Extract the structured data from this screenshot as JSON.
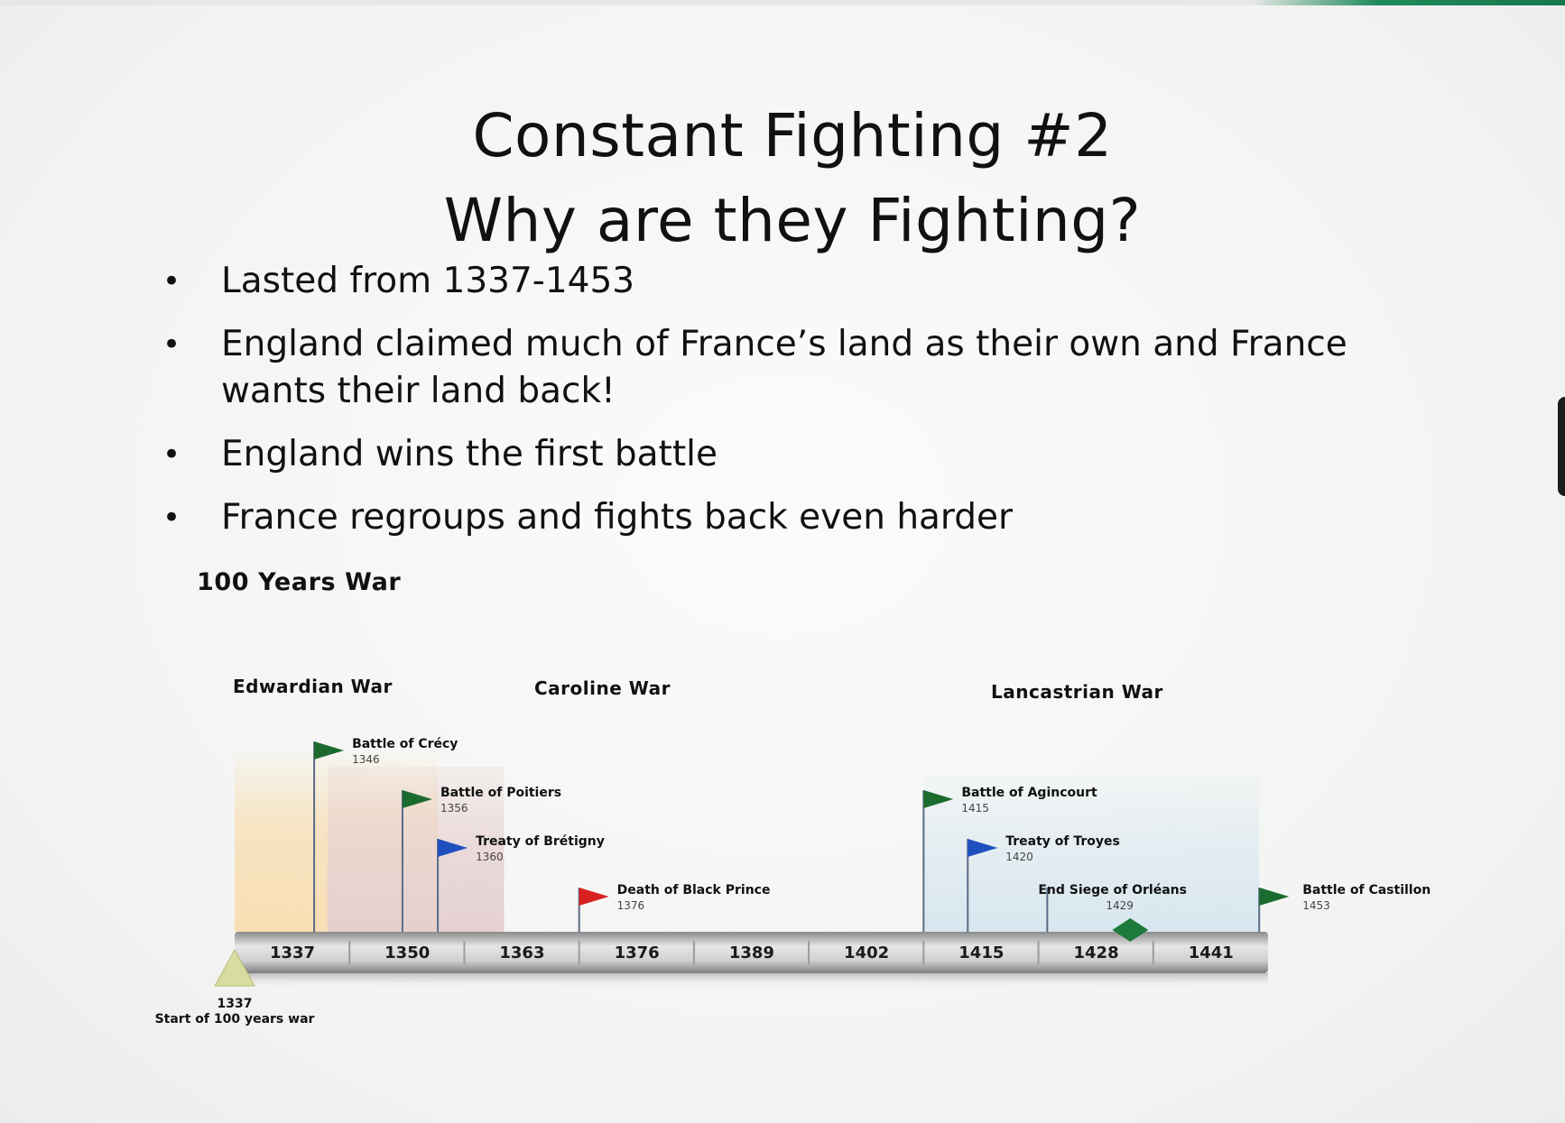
{
  "slide": {
    "title_line1": "Constant Fighting #2",
    "title_line2": "Why are they Fighting?",
    "bullets": [
      "Lasted from 1337-1453",
      "England claimed much of France’s land as their own and France wants their land back!",
      "England wins the first battle",
      "France regroups and fights back even harder"
    ]
  },
  "timeline": {
    "heading": "100 Years War",
    "axis_start": 1337,
    "axis_end": 1454,
    "ticks": [
      "1337",
      "1350",
      "1363",
      "1376",
      "1389",
      "1402",
      "1415",
      "1428",
      "1441"
    ],
    "eras": [
      {
        "name": "Edwardian War",
        "start": 1337,
        "end": 1360,
        "color": "#f8ddb0"
      },
      {
        "name": "Caroline War",
        "start": 1347.5,
        "end": 1367.5,
        "color": "#e7d3d3"
      },
      {
        "name": "Lancastrian War",
        "start": 1415,
        "end": 1453,
        "color": "#dbe8f0"
      }
    ],
    "events": [
      {
        "label": "Battle of Crécy",
        "year": "1346",
        "color": "#1c6b2e",
        "level": 1
      },
      {
        "label": "Battle of Poitiers",
        "year": "1356",
        "color": "#1c6b2e",
        "level": 2
      },
      {
        "label": "Treaty of Brétigny",
        "year": "1360",
        "color": "#1f4fbf",
        "level": 3
      },
      {
        "label": "Death of Black Prince",
        "year": "1376",
        "color": "#d92121",
        "level": 4
      },
      {
        "label": "Battle of Agincourt",
        "year": "1415",
        "color": "#1c6b2e",
        "level": 2
      },
      {
        "label": "Treaty of Troyes",
        "year": "1420",
        "color": "#1f4fbf",
        "level": 3
      },
      {
        "label": "End Siege of Orléans",
        "year": "1429",
        "color": "#1c7a3a",
        "level": 4,
        "marker": "diamond"
      },
      {
        "label": "Battle of Castillon",
        "year": "1453",
        "color": "#1c6b2e",
        "level": 4
      }
    ],
    "start_marker": {
      "year": "1337",
      "label": "Start of 100 years war",
      "color": "#d8dca0"
    }
  }
}
